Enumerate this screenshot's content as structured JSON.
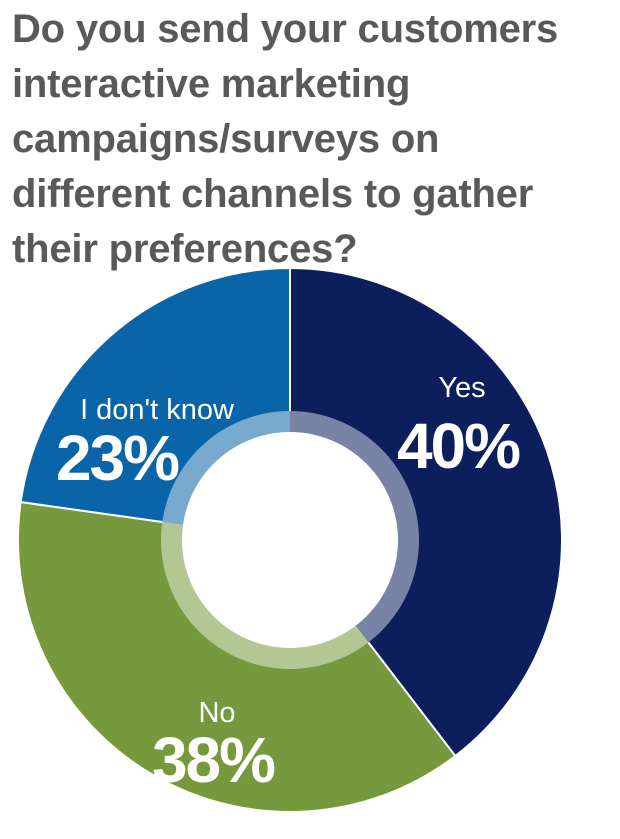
{
  "title_lines": [
    "Do you send your customers",
    "interactive marketing",
    "campaigns/surveys on",
    "different channels to gather",
    "their preferences?"
  ],
  "chart_data": {
    "type": "pie",
    "title": "Do you send your customers interactive marketing campaigns/surveys on different channels to gather their preferences?",
    "donut": true,
    "slices": [
      {
        "label": "Yes",
        "value": 40,
        "display": "40%",
        "color": "#0c1e5b"
      },
      {
        "label": "No",
        "value": 38,
        "display": "38%",
        "color": "#76993e"
      },
      {
        "label": "I don't know",
        "value": 23,
        "display": "23%",
        "color": "#0a64a8"
      }
    ]
  }
}
